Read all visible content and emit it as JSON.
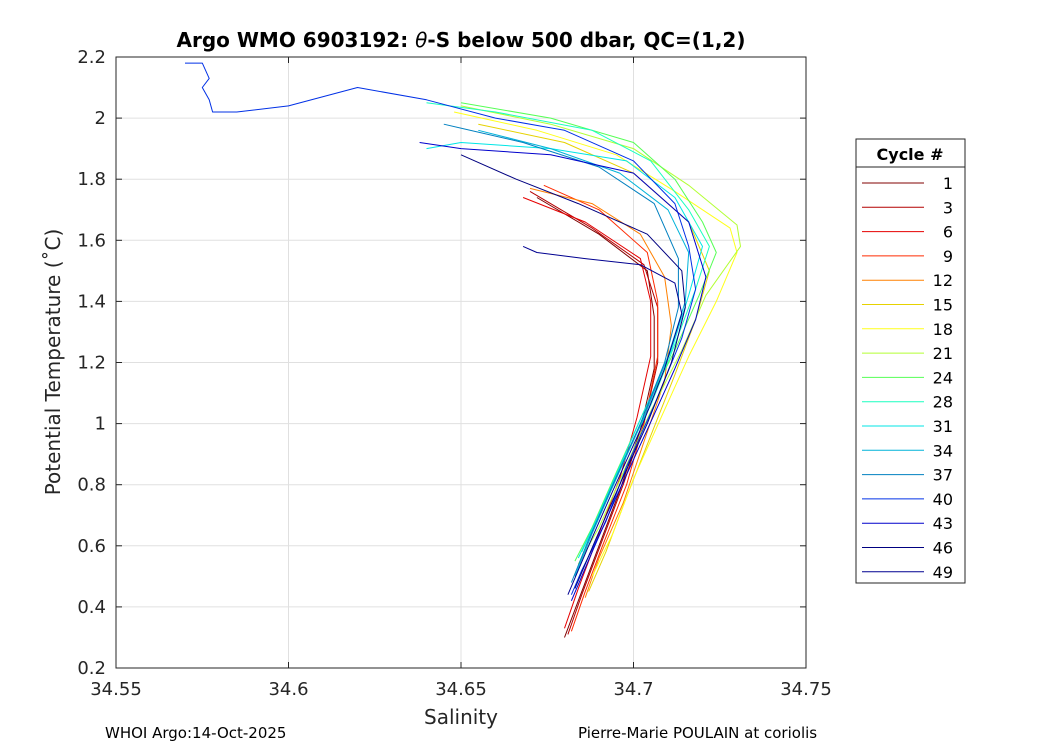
{
  "chart_data": {
    "type": "line",
    "title_prefix": "Argo WMO 6903192: ",
    "title_theta": "θ",
    "title_suffix": "-S below 500 dbar,  QC=(1,2)",
    "xlabel": "Salinity",
    "ylabel": "Potential Temperature (˚C)",
    "xlim": [
      34.55,
      34.75
    ],
    "ylim": [
      0.2,
      2.2
    ],
    "xticks": [
      34.55,
      34.6,
      34.65,
      34.7,
      34.75
    ],
    "xtick_labels": [
      "34.55",
      "34.6",
      "34.65",
      "34.7",
      "34.75"
    ],
    "yticks": [
      0.2,
      0.4,
      0.6,
      0.8,
      1.0,
      1.2,
      1.4,
      1.6,
      1.8,
      2.0,
      2.2
    ],
    "ytick_labels": [
      "0.2",
      "0.4",
      "0.6",
      "0.8",
      "1",
      "1.2",
      "1.4",
      "1.6",
      "1.8",
      "2",
      "2.2"
    ],
    "grid": true,
    "legend": {
      "title": "Cycle #",
      "placement": "right-outside",
      "entries": [
        {
          "label": "1",
          "color": "#800000"
        },
        {
          "label": "3",
          "color": "#b30000"
        },
        {
          "label": "6",
          "color": "#e60000"
        },
        {
          "label": "9",
          "color": "#ff2a00"
        },
        {
          "label": "12",
          "color": "#ff8000"
        },
        {
          "label": "15",
          "color": "#e6d200"
        },
        {
          "label": "18",
          "color": "#ffff1a"
        },
        {
          "label": "21",
          "color": "#b3ff33"
        },
        {
          "label": "24",
          "color": "#55ff55"
        },
        {
          "label": "28",
          "color": "#1affc0"
        },
        {
          "label": "31",
          "color": "#00e6e6"
        },
        {
          "label": "34",
          "color": "#00b3d9"
        },
        {
          "label": "37",
          "color": "#0080c0"
        },
        {
          "label": "40",
          "color": "#0030e6"
        },
        {
          "label": "43",
          "color": "#0000cc"
        },
        {
          "label": "46",
          "color": "#000080"
        },
        {
          "label": "49",
          "color": "#000090"
        }
      ]
    },
    "series": [
      {
        "name": "1",
        "color": "#800000",
        "points": [
          [
            34.68,
            0.3
          ],
          [
            34.684,
            0.42
          ],
          [
            34.69,
            0.6
          ],
          [
            34.696,
            0.78
          ],
          [
            34.702,
            0.98
          ],
          [
            34.706,
            1.18
          ],
          [
            34.706,
            1.35
          ],
          [
            34.704,
            1.5
          ],
          [
            34.69,
            1.62
          ],
          [
            34.672,
            1.74
          ]
        ]
      },
      {
        "name": "3",
        "color": "#b30000",
        "points": [
          [
            34.681,
            0.31
          ],
          [
            34.685,
            0.44
          ],
          [
            34.691,
            0.62
          ],
          [
            34.697,
            0.8
          ],
          [
            34.703,
            1.0
          ],
          [
            34.707,
            1.2
          ],
          [
            34.707,
            1.38
          ],
          [
            34.703,
            1.52
          ],
          [
            34.688,
            1.64
          ],
          [
            34.67,
            1.76
          ]
        ]
      },
      {
        "name": "6",
        "color": "#e60000",
        "points": [
          [
            34.68,
            0.33
          ],
          [
            34.684,
            0.46
          ],
          [
            34.69,
            0.64
          ],
          [
            34.696,
            0.82
          ],
          [
            34.701,
            1.02
          ],
          [
            34.705,
            1.22
          ],
          [
            34.705,
            1.4
          ],
          [
            34.702,
            1.54
          ],
          [
            34.686,
            1.66
          ],
          [
            34.668,
            1.74
          ]
        ]
      },
      {
        "name": "9",
        "color": "#ff2a00",
        "points": [
          [
            34.682,
            0.32
          ],
          [
            34.686,
            0.45
          ],
          [
            34.691,
            0.6
          ],
          [
            34.698,
            0.8
          ],
          [
            34.703,
            1.0
          ],
          [
            34.707,
            1.22
          ],
          [
            34.707,
            1.4
          ],
          [
            34.704,
            1.56
          ],
          [
            34.69,
            1.7
          ],
          [
            34.674,
            1.78
          ]
        ]
      },
      {
        "name": "12",
        "color": "#ff8000",
        "points": [
          [
            34.686,
            0.43
          ],
          [
            34.69,
            0.56
          ],
          [
            34.697,
            0.74
          ],
          [
            34.703,
            0.94
          ],
          [
            34.709,
            1.14
          ],
          [
            34.711,
            1.32
          ],
          [
            34.709,
            1.48
          ],
          [
            34.702,
            1.62
          ],
          [
            34.688,
            1.72
          ],
          [
            34.67,
            1.77
          ]
        ]
      },
      {
        "name": "15",
        "color": "#e6d200",
        "points": [
          [
            34.687,
            0.45
          ],
          [
            34.692,
            0.58
          ],
          [
            34.698,
            0.76
          ],
          [
            34.705,
            0.96
          ],
          [
            34.712,
            1.16
          ],
          [
            34.718,
            1.34
          ],
          [
            34.722,
            1.5
          ],
          [
            34.716,
            1.66
          ],
          [
            34.7,
            1.82
          ],
          [
            34.68,
            1.92
          ],
          [
            34.655,
            1.98
          ]
        ]
      },
      {
        "name": "18",
        "color": "#ffff1a",
        "points": [
          [
            34.688,
            0.5
          ],
          [
            34.694,
            0.64
          ],
          [
            34.7,
            0.82
          ],
          [
            34.708,
            1.02
          ],
          [
            34.716,
            1.22
          ],
          [
            34.724,
            1.4
          ],
          [
            34.73,
            1.56
          ],
          [
            34.728,
            1.64
          ],
          [
            34.712,
            1.76
          ],
          [
            34.695,
            1.88
          ],
          [
            34.672,
            1.96
          ],
          [
            34.648,
            2.02
          ]
        ]
      },
      {
        "name": "21",
        "color": "#b3ff33",
        "points": [
          [
            34.684,
            0.54
          ],
          [
            34.69,
            0.66
          ],
          [
            34.697,
            0.84
          ],
          [
            34.705,
            1.04
          ],
          [
            34.714,
            1.24
          ],
          [
            34.721,
            1.42
          ],
          [
            34.731,
            1.58
          ],
          [
            34.73,
            1.65
          ],
          [
            34.716,
            1.78
          ],
          [
            34.7,
            1.9
          ],
          [
            34.676,
            1.98
          ],
          [
            34.65,
            2.04
          ]
        ]
      },
      {
        "name": "24",
        "color": "#55ff55",
        "points": [
          [
            34.683,
            0.55
          ],
          [
            34.688,
            0.66
          ],
          [
            34.695,
            0.84
          ],
          [
            34.703,
            1.04
          ],
          [
            34.712,
            1.24
          ],
          [
            34.719,
            1.42
          ],
          [
            34.724,
            1.56
          ],
          [
            34.72,
            1.66
          ],
          [
            34.712,
            1.8
          ],
          [
            34.7,
            1.92
          ],
          [
            34.676,
            2.0
          ],
          [
            34.65,
            2.05
          ]
        ]
      },
      {
        "name": "28",
        "color": "#1affc0",
        "points": [
          [
            34.685,
            0.58
          ],
          [
            34.69,
            0.7
          ],
          [
            34.697,
            0.88
          ],
          [
            34.705,
            1.06
          ],
          [
            34.712,
            1.26
          ],
          [
            34.718,
            1.44
          ],
          [
            34.722,
            1.58
          ],
          [
            34.716,
            1.7
          ],
          [
            34.705,
            1.86
          ],
          [
            34.688,
            1.96
          ],
          [
            34.66,
            2.02
          ],
          [
            34.64,
            2.05
          ]
        ]
      },
      {
        "name": "31",
        "color": "#00e6e6",
        "points": [
          [
            34.684,
            0.56
          ],
          [
            34.689,
            0.68
          ],
          [
            34.696,
            0.86
          ],
          [
            34.703,
            1.04
          ],
          [
            34.711,
            1.24
          ],
          [
            34.716,
            1.42
          ],
          [
            34.72,
            1.58
          ],
          [
            34.712,
            1.74
          ],
          [
            34.698,
            1.86
          ],
          [
            34.676,
            1.9
          ],
          [
            34.65,
            1.92
          ],
          [
            34.64,
            1.9
          ]
        ]
      },
      {
        "name": "34",
        "color": "#00b3d9",
        "points": [
          [
            34.683,
            0.5
          ],
          [
            34.688,
            0.64
          ],
          [
            34.695,
            0.82
          ],
          [
            34.703,
            1.02
          ],
          [
            34.71,
            1.22
          ],
          [
            34.715,
            1.4
          ],
          [
            34.716,
            1.56
          ],
          [
            34.71,
            1.7
          ],
          [
            34.696,
            1.82
          ],
          [
            34.676,
            1.9
          ],
          [
            34.655,
            1.96
          ]
        ]
      },
      {
        "name": "37",
        "color": "#0080c0",
        "points": [
          [
            34.682,
            0.48
          ],
          [
            34.687,
            0.62
          ],
          [
            34.694,
            0.8
          ],
          [
            34.702,
            1.0
          ],
          [
            34.709,
            1.2
          ],
          [
            34.713,
            1.38
          ],
          [
            34.713,
            1.54
          ],
          [
            34.706,
            1.72
          ],
          [
            34.69,
            1.84
          ],
          [
            34.668,
            1.92
          ],
          [
            34.645,
            1.98
          ]
        ]
      },
      {
        "name": "40",
        "color": "#0030e6",
        "points": [
          [
            34.57,
            2.18
          ],
          [
            34.575,
            2.18
          ],
          [
            34.577,
            2.13
          ],
          [
            34.575,
            2.1
          ],
          [
            34.577,
            2.06
          ],
          [
            34.578,
            2.02
          ],
          [
            34.585,
            2.02
          ],
          [
            34.6,
            2.04
          ],
          [
            34.62,
            2.1
          ],
          [
            34.64,
            2.06
          ],
          [
            34.66,
            2.0
          ],
          [
            34.68,
            1.96
          ],
          [
            34.7,
            1.86
          ],
          [
            34.712,
            1.72
          ],
          [
            34.716,
            1.58
          ],
          [
            34.718,
            1.44
          ],
          [
            34.714,
            1.28
          ],
          [
            34.706,
            1.06
          ],
          [
            34.698,
            0.86
          ],
          [
            34.692,
            0.68
          ],
          [
            34.685,
            0.52
          ],
          [
            34.682,
            0.44
          ]
        ]
      },
      {
        "name": "43",
        "color": "#0000cc",
        "points": [
          [
            34.682,
            0.42
          ],
          [
            34.688,
            0.58
          ],
          [
            34.695,
            0.76
          ],
          [
            34.704,
            0.98
          ],
          [
            34.712,
            1.18
          ],
          [
            34.718,
            1.34
          ],
          [
            34.721,
            1.48
          ],
          [
            34.716,
            1.66
          ],
          [
            34.7,
            1.82
          ],
          [
            34.676,
            1.88
          ],
          [
            34.65,
            1.9
          ],
          [
            34.638,
            1.92
          ]
        ]
      },
      {
        "name": "46",
        "color": "#000080",
        "points": [
          [
            34.683,
            0.46
          ],
          [
            34.689,
            0.62
          ],
          [
            34.696,
            0.8
          ],
          [
            34.704,
            1.0
          ],
          [
            34.711,
            1.2
          ],
          [
            34.715,
            1.38
          ],
          [
            34.714,
            1.5
          ],
          [
            34.704,
            1.62
          ],
          [
            34.684,
            1.72
          ],
          [
            34.666,
            1.8
          ],
          [
            34.65,
            1.88
          ]
        ]
      },
      {
        "name": "49",
        "color": "#000090",
        "points": [
          [
            34.681,
            0.44
          ],
          [
            34.687,
            0.6
          ],
          [
            34.694,
            0.78
          ],
          [
            34.702,
            0.98
          ],
          [
            34.709,
            1.18
          ],
          [
            34.714,
            1.36
          ],
          [
            34.712,
            1.46
          ],
          [
            34.702,
            1.52
          ],
          [
            34.686,
            1.54
          ],
          [
            34.672,
            1.56
          ],
          [
            34.668,
            1.58
          ]
        ]
      }
    ]
  },
  "footer": {
    "left": "WHOI Argo:14-Oct-2025",
    "right": "Pierre-Marie POULAIN at coriolis"
  }
}
